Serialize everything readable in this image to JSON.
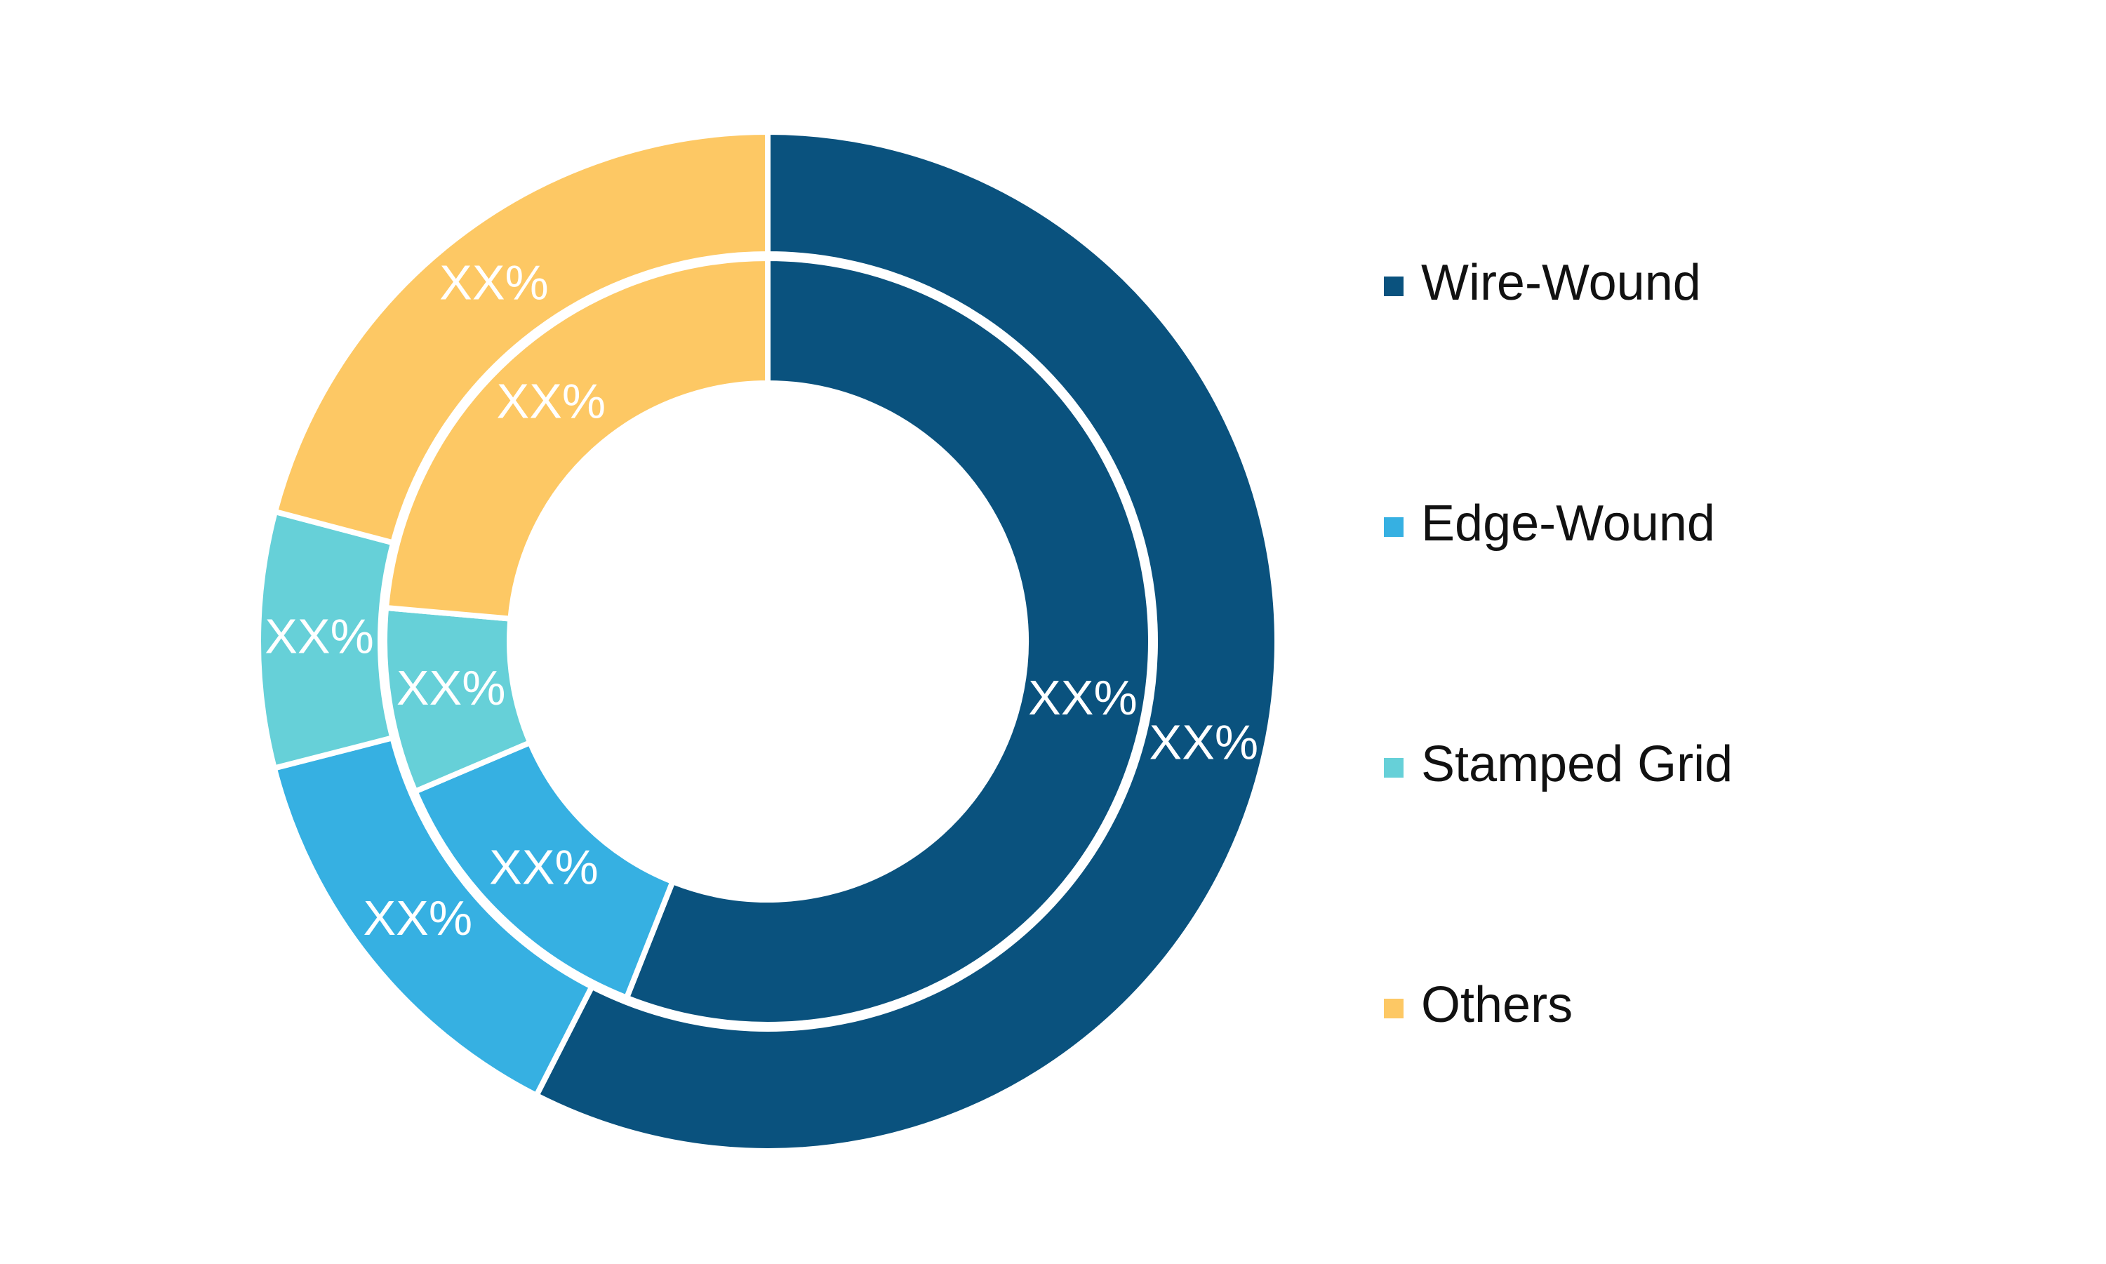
{
  "chart_data": {
    "type": "pie",
    "categories": [
      "Wire-Wound",
      "Edge-Wound",
      "Stamped Grid",
      "Others"
    ],
    "colors": [
      "#0a527e",
      "#36b0e2",
      "#66d0d8",
      "#fdc864"
    ],
    "series": [
      {
        "values": [
          57.5,
          13.5,
          8.1,
          20.9
        ],
        "value_labels": [
          "XX%",
          "XX%",
          "XX%",
          "XX%"
        ]
      },
      {
        "values": [
          56,
          12.6,
          7.8,
          23.6
        ],
        "value_labels": [
          "XX%",
          "XX%",
          "XX%",
          "XX%"
        ]
      }
    ]
  }
}
